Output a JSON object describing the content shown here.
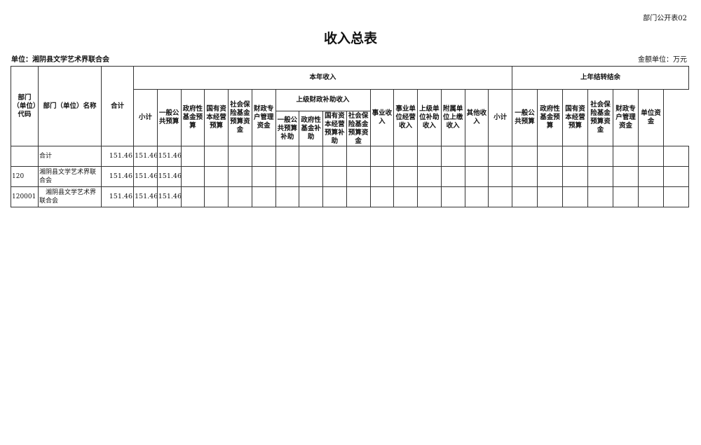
{
  "form_code": "部门公开表02",
  "title": "收入总表",
  "unit_label": "单位：湘阴县文学艺术界联合会",
  "money_unit": "金额单位：万元",
  "headers": {
    "code": "部门（单位）代码",
    "name": "部门（单位）名称",
    "total": "合计",
    "current_year": "本年收入",
    "prior_year": "上年结转结余",
    "upper_subsidy": "上级财政补助收入",
    "current_cols": [
      "小计",
      "一般公共预算",
      "政府性基金预算",
      "国有资本经营预算",
      "社会保险基金预算资金",
      "财政专户管理资金"
    ],
    "upper_cols": [
      "一般公共预算补助",
      "政府性基金补助",
      "国有资本经营预算补助",
      "社会保险基金预算资金"
    ],
    "other_cols": [
      "事业收入",
      "事业单位经营收入",
      "上级单位补助收入",
      "附属单位上缴收入",
      "其他收入"
    ],
    "prior_cols": [
      "小计",
      "一般公共预算",
      "政府性基金预算",
      "国有资本经营预算",
      "社会保险基金预算资金",
      "财政专户管理资金",
      "单位资金"
    ]
  },
  "rows": [
    {
      "code": "",
      "name": "合计",
      "total": "151.46",
      "subtotal": "151.46",
      "general": "151.46"
    },
    {
      "code": "120",
      "name": "湘阴县文学艺术界联合会",
      "total": "151.46",
      "subtotal": "151.46",
      "general": "151.46"
    },
    {
      "code": "120001",
      "name": "　湘阴县文学艺术界联合会",
      "total": "151.46",
      "subtotal": "151.46",
      "general": "151.46"
    }
  ]
}
